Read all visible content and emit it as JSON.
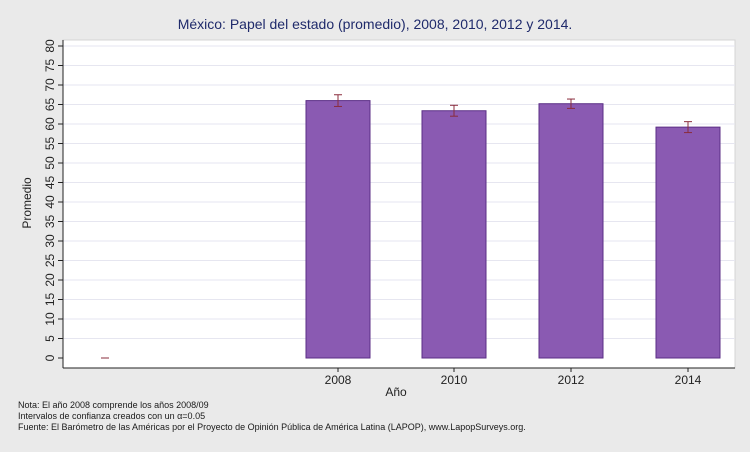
{
  "chart_data": {
    "type": "bar",
    "title": "México: Papel del estado (promedio), 2008, 2010, 2012 y 2014.",
    "xlabel": "Año",
    "ylabel": "Promedio",
    "ylim": [
      0,
      80
    ],
    "yticks": [
      "0",
      "5",
      "10",
      "15",
      "20",
      "25",
      "30",
      "35",
      "40",
      "45",
      "50",
      "55",
      "60",
      "65",
      "70",
      "75",
      "80"
    ],
    "categories": [
      "",
      "2008",
      "2010",
      "2012",
      "2014"
    ],
    "values": [
      0,
      66.0,
      63.4,
      65.2,
      59.2
    ],
    "ci_low": [
      0,
      64.5,
      62.0,
      64.0,
      57.8
    ],
    "ci_high": [
      0,
      67.5,
      64.8,
      66.4,
      60.6
    ],
    "grid": true,
    "colors": {
      "bar": "#8a5ab2",
      "bar_edge": "#5b2e86",
      "error_bar": "#8a2c3c",
      "background": "#eaeaea",
      "plot_background": "#ffffff",
      "grid": "#e6e6f0",
      "title": "#1f2a6b"
    }
  },
  "notes": [
    "Nota: El año 2008 comprende los años 2008/09",
    "Intervalos de confianza creados con un α=0.05",
    "Fuente: El Barómetro de las Américas por el Proyecto de Opinión Pública de América Latina (LAPOP), www.LapopSurveys.org."
  ]
}
